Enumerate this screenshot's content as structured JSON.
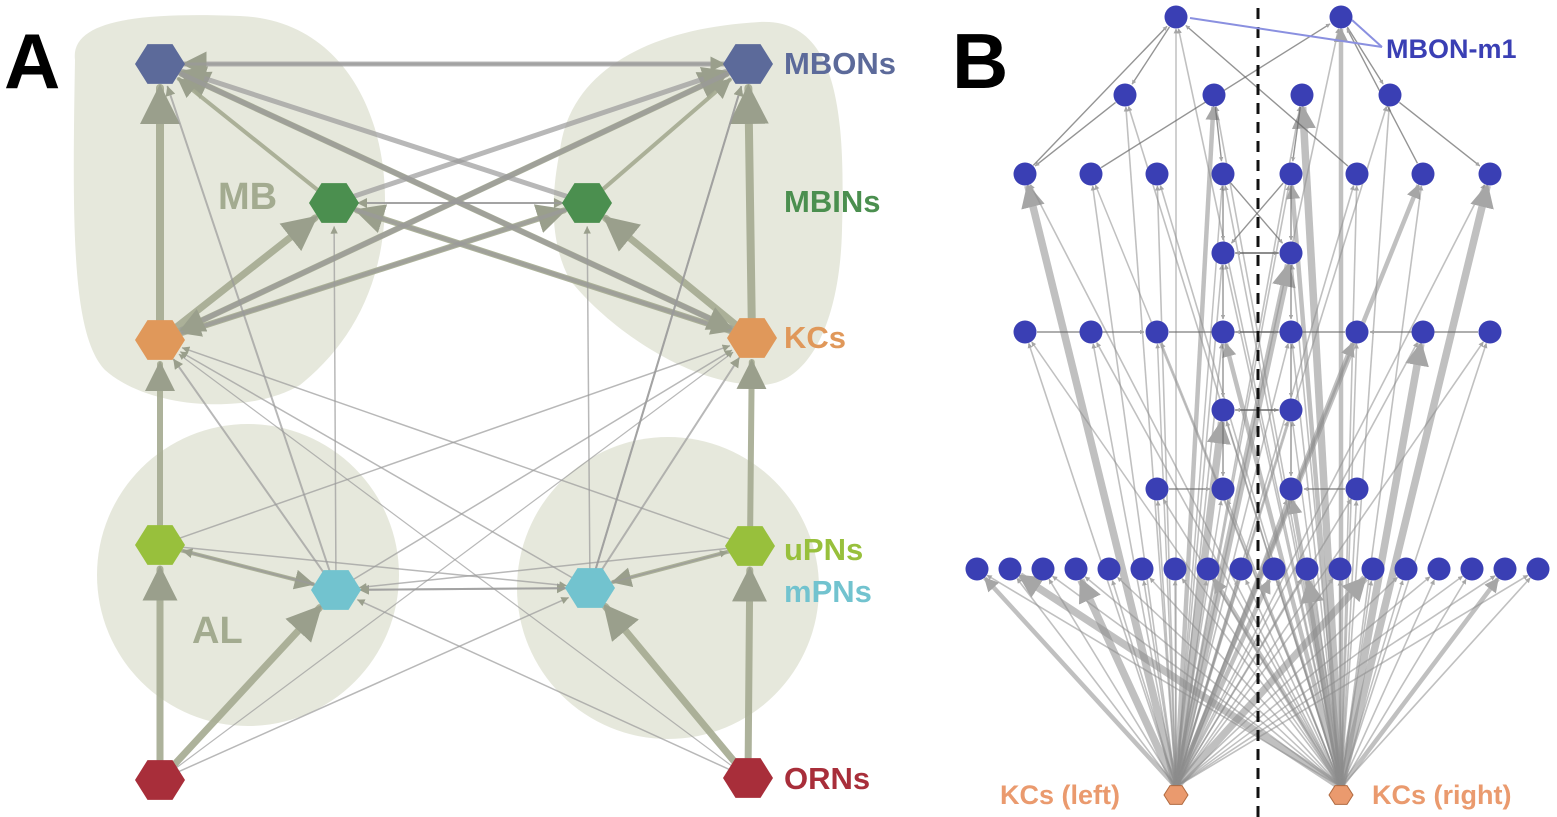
{
  "panel_a": {
    "letter": "A",
    "regions": {
      "mb": "MB",
      "al": "AL"
    },
    "labels": {
      "mbons": "MBONs",
      "mbins": "MBINs",
      "kcs": "KCs",
      "upns": "uPNs",
      "mpns": "mPNs",
      "orns": "ORNs"
    }
  },
  "panel_b": {
    "letter": "B",
    "labels": {
      "mbon_m1": "MBON-m1",
      "kcs_left": "KCs (left)",
      "kcs_right": "KCs (right)"
    }
  },
  "colors": {
    "mbons": "#5c6a9a",
    "mbins": "#4b8f4f",
    "kcs": "#e0985a",
    "upns": "#98c03c",
    "mpns": "#72c3cf",
    "orns": "#a82e3a",
    "node_b": "#3a3fb4",
    "kc_b": "#ea9a6e",
    "region": "#e6e8dc",
    "edge": "#9a9a9a",
    "edge_olive": "#a4aa90"
  }
}
